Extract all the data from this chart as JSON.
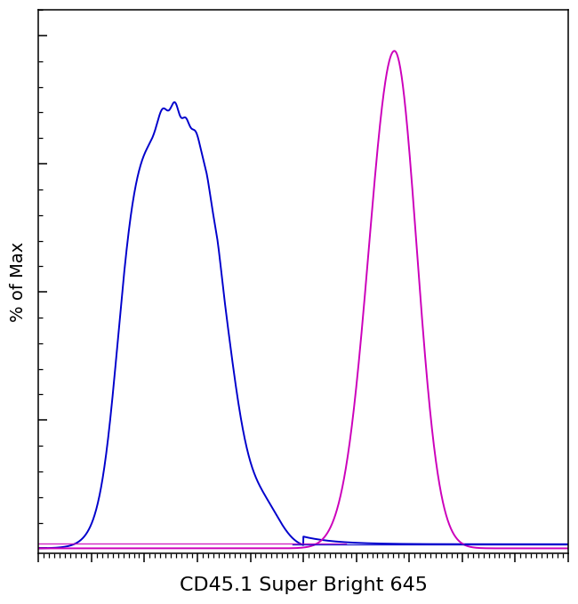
{
  "title": "",
  "xlabel": "CD45.1 Super Bright 645",
  "ylabel": "% of Max",
  "xlabel_fontsize": 16,
  "ylabel_fontsize": 14,
  "blue_color": "#0000cc",
  "magenta_color": "#cc00bb",
  "bg_color": "#ffffff",
  "xlim": [
    0,
    1000
  ],
  "ylim": [
    -0.01,
    1.05
  ],
  "figsize": [
    6.5,
    6.79
  ],
  "dpi": 100
}
